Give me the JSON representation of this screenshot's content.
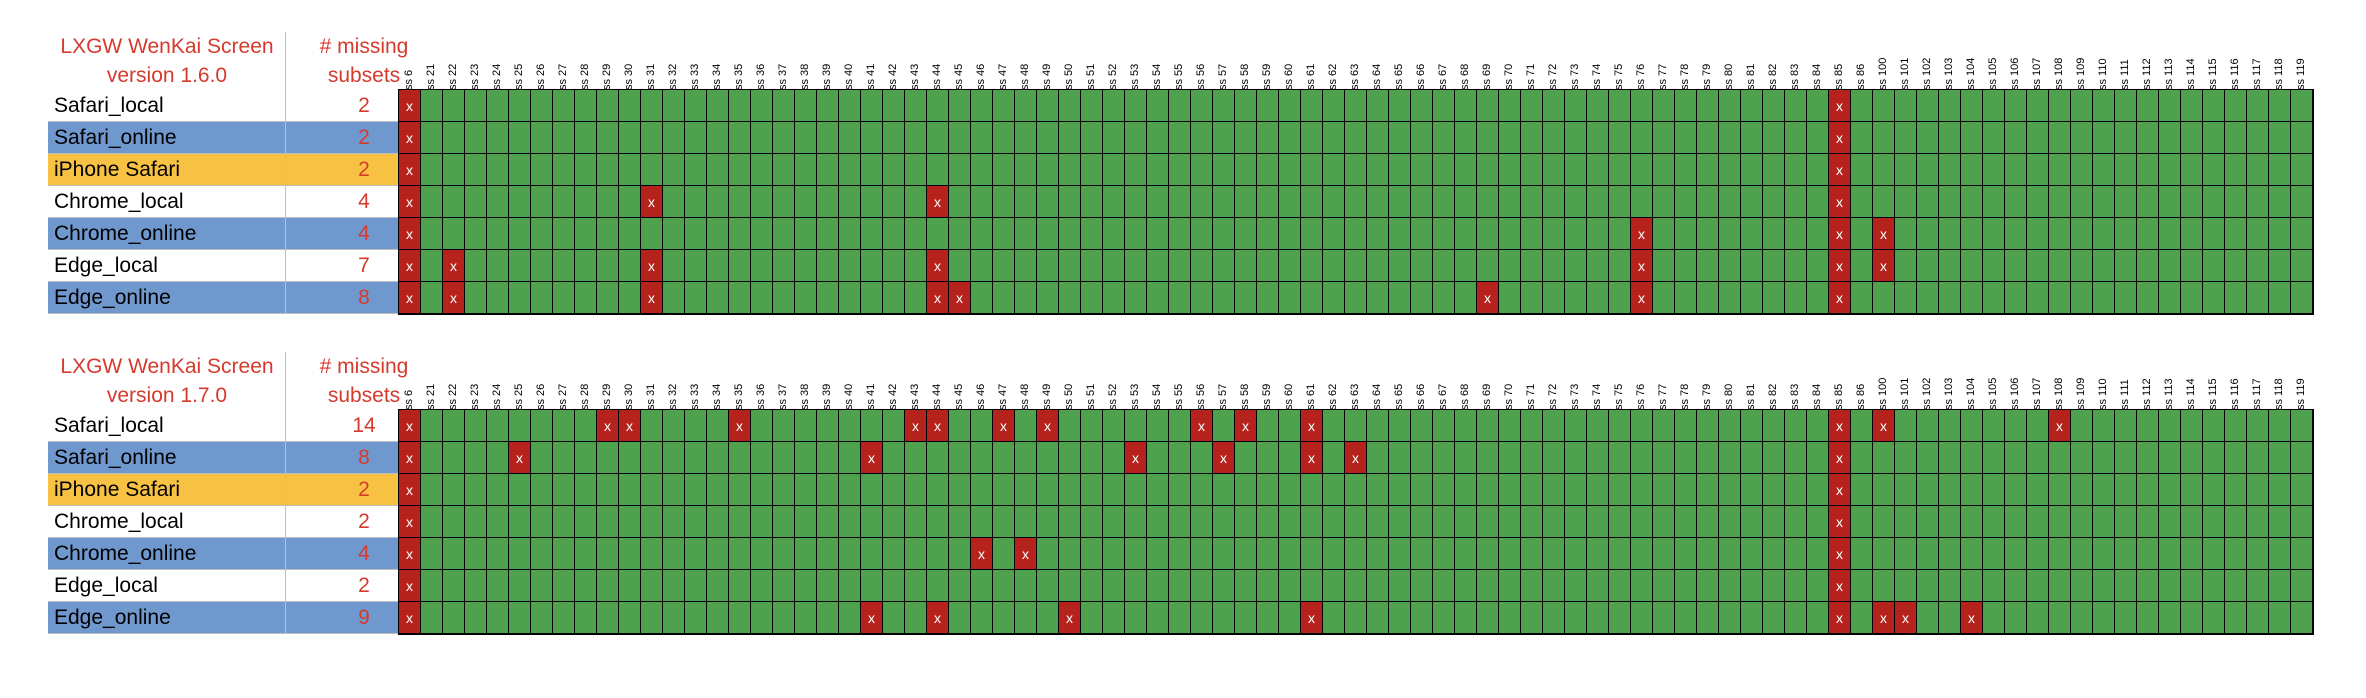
{
  "colors": {
    "ok": "#4ea24e",
    "missing": "#b5231c",
    "header_text": "#d53a2c",
    "row_blue": "#6f98cf",
    "row_orange": "#f7c243",
    "row_white": "#ffffff"
  },
  "chart_data": [
    {
      "type": "table",
      "title_line1": "LXGW WenKai Screen",
      "title_line2": "version 1.6.0",
      "count_header_line1": "# missing",
      "count_header_line2": "subsets",
      "columns": [
        "ss 6",
        "ss 21",
        "ss 22",
        "ss 23",
        "ss 24",
        "ss 25",
        "ss 26",
        "ss 27",
        "ss 28",
        "ss 29",
        "ss 30",
        "ss 31",
        "ss 32",
        "ss 33",
        "ss 34",
        "ss 35",
        "ss 36",
        "ss 37",
        "ss 38",
        "ss 39",
        "ss 40",
        "ss 41",
        "ss 42",
        "ss 43",
        "ss 44",
        "ss 45",
        "ss 46",
        "ss 47",
        "ss 48",
        "ss 49",
        "ss 50",
        "ss 51",
        "ss 52",
        "ss 53",
        "ss 54",
        "ss 55",
        "ss 56",
        "ss 57",
        "ss 58",
        "ss 59",
        "ss 60",
        "ss 61",
        "ss 62",
        "ss 63",
        "ss 64",
        "ss 65",
        "ss 66",
        "ss 67",
        "ss 68",
        "ss 69",
        "ss 70",
        "ss 71",
        "ss 72",
        "ss 73",
        "ss 74",
        "ss 75",
        "ss 76",
        "ss 77",
        "ss 78",
        "ss 79",
        "ss 80",
        "ss 81",
        "ss 82",
        "ss 83",
        "ss 84",
        "ss 85",
        "ss 86",
        "ss 100",
        "ss 101",
        "ss 102",
        "ss 103",
        "ss 104",
        "ss 105",
        "ss 106",
        "ss 107",
        "ss 108",
        "ss 109",
        "ss 110",
        "ss 111",
        "ss 112",
        "ss 113",
        "ss 114",
        "ss 115",
        "ss 116",
        "ss 117",
        "ss 118",
        "ss 119"
      ],
      "marker": "x",
      "rows": [
        {
          "name": "Safari_local",
          "count": "2",
          "color": "white",
          "missing": [
            "ss 6",
            "ss 85"
          ]
        },
        {
          "name": "Safari_online",
          "count": "2",
          "color": "blue",
          "missing": [
            "ss 6",
            "ss 85"
          ]
        },
        {
          "name": "iPhone Safari",
          "count": "2",
          "color": "orange",
          "missing": [
            "ss 6",
            "ss 85"
          ]
        },
        {
          "name": "Chrome_local",
          "count": "4",
          "color": "white",
          "missing": [
            "ss 6",
            "ss 31",
            "ss 44",
            "ss 85"
          ]
        },
        {
          "name": "Chrome_online",
          "count": "4",
          "color": "blue",
          "missing": [
            "ss 6",
            "ss 76",
            "ss 85",
            "ss 100"
          ]
        },
        {
          "name": "Edge_local",
          "count": "7",
          "color": "white",
          "missing": [
            "ss 6",
            "ss 22",
            "ss 31",
            "ss 44",
            "ss 76",
            "ss 85",
            "ss 100"
          ]
        },
        {
          "name": "Edge_online",
          "count": "8",
          "color": "blue",
          "missing": [
            "ss 6",
            "ss 22",
            "ss 31",
            "ss 44",
            "ss 45",
            "ss 69",
            "ss 76",
            "ss 85"
          ]
        }
      ]
    },
    {
      "type": "table",
      "title_line1": "LXGW WenKai Screen",
      "title_line2": "version 1.7.0",
      "count_header_line1": "# missing",
      "count_header_line2": "subsets",
      "columns": [
        "ss 6",
        "ss 21",
        "ss 22",
        "ss 23",
        "ss 24",
        "ss 25",
        "ss 26",
        "ss 27",
        "ss 28",
        "ss 29",
        "ss 30",
        "ss 31",
        "ss 32",
        "ss 33",
        "ss 34",
        "ss 35",
        "ss 36",
        "ss 37",
        "ss 38",
        "ss 39",
        "ss 40",
        "ss 41",
        "ss 42",
        "ss 43",
        "ss 44",
        "ss 45",
        "ss 46",
        "ss 47",
        "ss 48",
        "ss 49",
        "ss 50",
        "ss 51",
        "ss 52",
        "ss 53",
        "ss 54",
        "ss 55",
        "ss 56",
        "ss 57",
        "ss 58",
        "ss 59",
        "ss 60",
        "ss 61",
        "ss 62",
        "ss 63",
        "ss 64",
        "ss 65",
        "ss 66",
        "ss 67",
        "ss 68",
        "ss 69",
        "ss 70",
        "ss 71",
        "ss 72",
        "ss 73",
        "ss 74",
        "ss 75",
        "ss 76",
        "ss 77",
        "ss 78",
        "ss 79",
        "ss 80",
        "ss 81",
        "ss 82",
        "ss 83",
        "ss 84",
        "ss 85",
        "ss 86",
        "ss 100",
        "ss 101",
        "ss 102",
        "ss 103",
        "ss 104",
        "ss 105",
        "ss 106",
        "ss 107",
        "ss 108",
        "ss 109",
        "ss 110",
        "ss 111",
        "ss 112",
        "ss 113",
        "ss 114",
        "ss 115",
        "ss 116",
        "ss 117",
        "ss 118",
        "ss 119"
      ],
      "marker": "x",
      "rows": [
        {
          "name": "Safari_local",
          "count": "14",
          "color": "white",
          "missing": [
            "ss 6",
            "ss 29",
            "ss 30",
            "ss 35",
            "ss 43",
            "ss 44",
            "ss 47",
            "ss 49",
            "ss 56",
            "ss 58",
            "ss 61",
            "ss 85",
            "ss 100",
            "ss 108"
          ]
        },
        {
          "name": "Safari_online",
          "count": "8",
          "color": "blue",
          "missing": [
            "ss 6",
            "ss 25",
            "ss 41",
            "ss 53",
            "ss 57",
            "ss 61",
            "ss 63",
            "ss 85"
          ]
        },
        {
          "name": "iPhone Safari",
          "count": "2",
          "color": "orange",
          "missing": [
            "ss 6",
            "ss 85"
          ]
        },
        {
          "name": "Chrome_local",
          "count": "2",
          "color": "white",
          "missing": [
            "ss 6",
            "ss 85"
          ]
        },
        {
          "name": "Chrome_online",
          "count": "4",
          "color": "blue",
          "missing": [
            "ss 6",
            "ss 46",
            "ss 48",
            "ss 85"
          ]
        },
        {
          "name": "Edge_local",
          "count": "2",
          "color": "white",
          "missing": [
            "ss 6",
            "ss 85"
          ]
        },
        {
          "name": "Edge_online",
          "count": "9",
          "color": "blue",
          "missing": [
            "ss 6",
            "ss 41",
            "ss 44",
            "ss 50",
            "ss 61",
            "ss 85",
            "ss 100",
            "ss 101",
            "ss 104"
          ]
        }
      ]
    }
  ]
}
